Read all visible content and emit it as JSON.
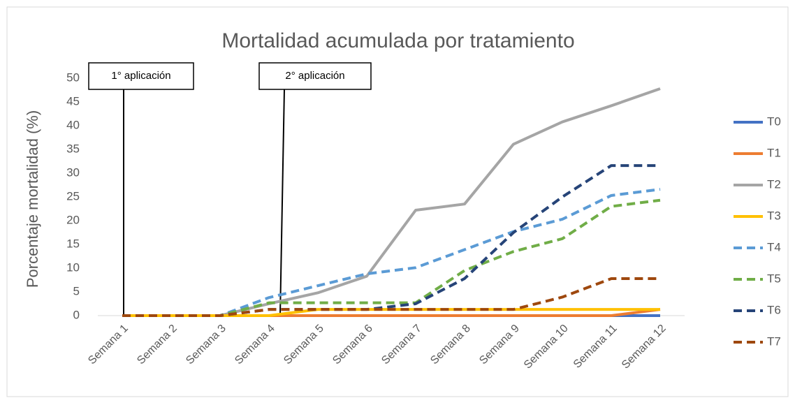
{
  "chart_data": {
    "type": "line",
    "title": "Mortalidad acumulada por tratamiento",
    "y_label": "Porcentaje mortalidad (%)",
    "categories": [
      "Semana 1",
      "Semana 2",
      "Semana 3",
      "Semana 4",
      "Semana 5",
      "Semana 6",
      "Semana 7",
      "Semana 8",
      "Semana 9",
      "Semana 10",
      "Semana 11",
      "Semana 12"
    ],
    "series": [
      {
        "name": "T0",
        "color": "#4472c4",
        "dashed": false,
        "values": [
          0,
          0,
          0,
          0,
          0,
          0,
          0,
          0,
          0,
          0,
          0,
          0
        ]
      },
      {
        "name": "T1",
        "color": "#ed7d31",
        "dashed": false,
        "values": [
          0,
          0,
          0,
          0,
          0,
          0,
          0,
          0,
          0,
          0,
          0,
          1.3
        ]
      },
      {
        "name": "T2",
        "color": "#a5a5a5",
        "dashed": false,
        "values": [
          0,
          0,
          0,
          2.5,
          4.8,
          8.3,
          22.2,
          23.5,
          36.1,
          40.8,
          44.2,
          47.8
        ]
      },
      {
        "name": "T3",
        "color": "#ffc000",
        "dashed": false,
        "values": [
          0,
          0,
          0,
          0,
          1.3,
          1.3,
          1.3,
          1.3,
          1.3,
          1.3,
          1.3,
          1.3
        ]
      },
      {
        "name": "T4",
        "color": "#5b9bd5",
        "dashed": true,
        "values": [
          0,
          0,
          0,
          3.8,
          6.3,
          8.8,
          10.1,
          13.9,
          17.7,
          20.3,
          25.3,
          26.6
        ]
      },
      {
        "name": "T5",
        "color": "#70ad47",
        "dashed": true,
        "values": [
          0,
          0,
          0,
          2.7,
          2.7,
          2.7,
          2.7,
          9.5,
          13.5,
          16.2,
          23,
          24.3
        ]
      },
      {
        "name": "T6",
        "color": "#264478",
        "dashed": true,
        "values": [
          0,
          0,
          0,
          1.3,
          1.3,
          1.3,
          2.5,
          7.8,
          17.5,
          25,
          31.6,
          31.6
        ]
      },
      {
        "name": "T7",
        "color": "#9e480e",
        "dashed": true,
        "values": [
          0,
          0,
          0,
          1.3,
          1.3,
          1.3,
          1.3,
          1.3,
          1.3,
          3.9,
          7.8,
          7.8
        ]
      }
    ],
    "annotations": [
      {
        "text": "1° aplicación",
        "category": "Semana 1"
      },
      {
        "text": "2° aplicación",
        "category": "Semana 4"
      }
    ],
    "ylim": [
      0,
      50
    ],
    "yticks": [
      0,
      5,
      10,
      15,
      20,
      25,
      30,
      35,
      40,
      45,
      50
    ],
    "grid": false,
    "legend": "right"
  }
}
